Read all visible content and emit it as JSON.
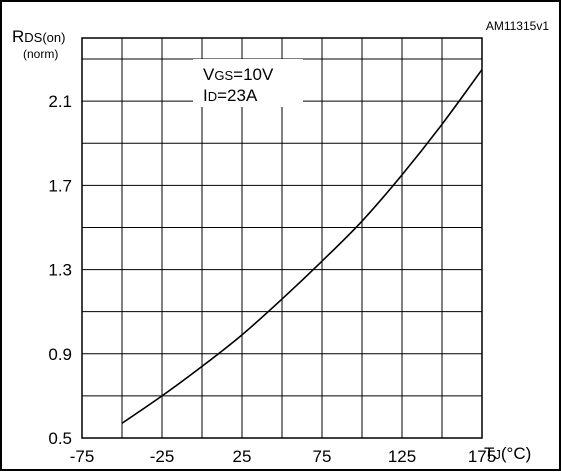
{
  "chart_data": {
    "type": "line",
    "id_code": "AM11315v1",
    "ylabel": {
      "main": "R",
      "sub": "DS(on)",
      "unit": "(norm)"
    },
    "xlabel": {
      "main": "T",
      "sub": "J",
      "unit": "(°C)"
    },
    "annotations": [
      {
        "main": "V",
        "sub": "GS",
        "rest": "=10V"
      },
      {
        "main": "I",
        "sub": "D",
        "rest": "=23A"
      }
    ],
    "xlim": [
      -75,
      175
    ],
    "ylim": [
      0.5,
      2.4
    ],
    "x_ticks": [
      "-75",
      "-25",
      "25",
      "75",
      "125",
      "175"
    ],
    "y_ticks": [
      "0.5",
      "0.9",
      "1.3",
      "1.7",
      "2.1"
    ],
    "x_grid_step": 25,
    "y_grid_step": 0.2,
    "series": [
      {
        "x": [
          -50,
          -25,
          0,
          25,
          50,
          75,
          100,
          125,
          150,
          175
        ],
        "y": [
          0.57,
          0.7,
          0.84,
          0.99,
          1.16,
          1.34,
          1.53,
          1.75,
          1.99,
          2.25
        ],
        "color": "#000000"
      }
    ]
  }
}
